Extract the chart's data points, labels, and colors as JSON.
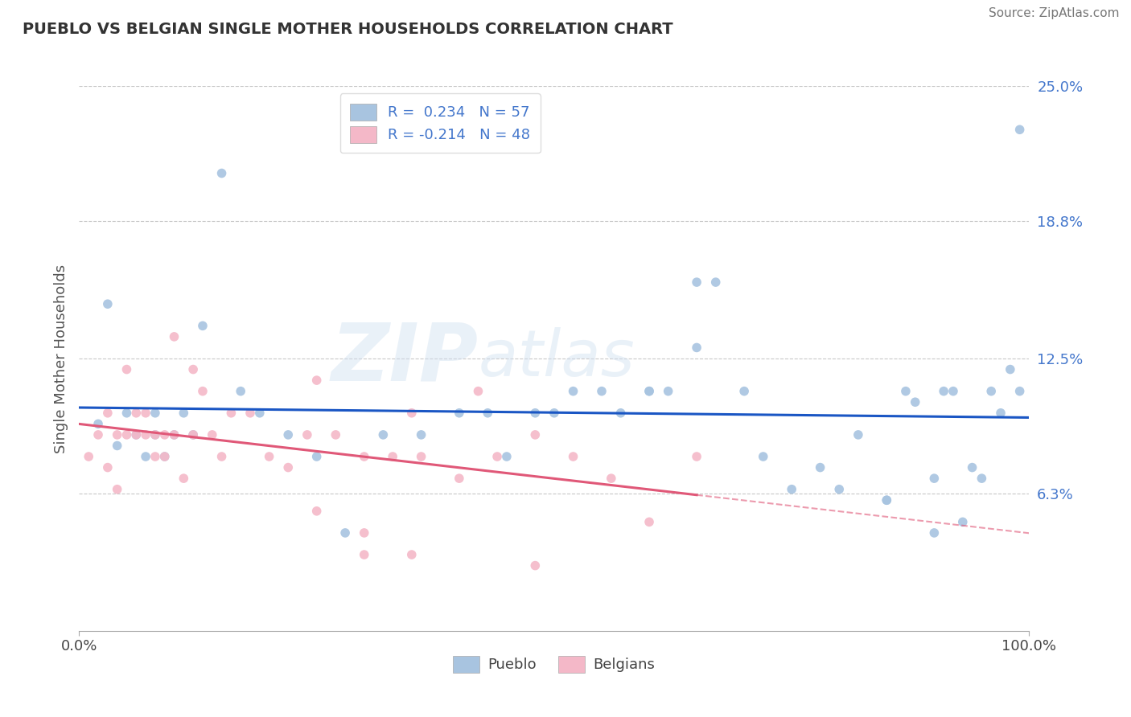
{
  "title": "PUEBLO VS BELGIAN SINGLE MOTHER HOUSEHOLDS CORRELATION CHART",
  "source": "Source: ZipAtlas.com",
  "ylabel": "Single Mother Households",
  "xlim": [
    0,
    100
  ],
  "ylim": [
    0,
    25
  ],
  "ytick_vals": [
    6.3,
    12.5,
    18.8,
    25.0
  ],
  "ytick_labels": [
    "6.3%",
    "12.5%",
    "18.8%",
    "25.0%"
  ],
  "xtick_vals": [
    0,
    100
  ],
  "xtick_labels": [
    "0.0%",
    "100.0%"
  ],
  "pueblo_color": "#a8c4e0",
  "belgian_color": "#f4b8c8",
  "pueblo_line_color": "#1a56c4",
  "belgian_line_color": "#e05878",
  "pueblo_R": 0.234,
  "pueblo_N": 57,
  "belgian_R": -0.214,
  "belgian_N": 48,
  "legend_label1": "Pueblo",
  "legend_label2": "Belgians",
  "watermark": "ZIPatlas",
  "background_color": "#ffffff",
  "grid_color": "#c8c8c8",
  "text_color": "#4477cc",
  "title_color": "#333333",
  "source_color": "#777777",
  "ylabel_color": "#555555",
  "pueblo_x": [
    2,
    4,
    5,
    6,
    7,
    8,
    8,
    9,
    10,
    11,
    12,
    13,
    15,
    17,
    19,
    22,
    25,
    28,
    32,
    36,
    40,
    43,
    45,
    48,
    50,
    52,
    55,
    57,
    60,
    62,
    65,
    67,
    70,
    72,
    75,
    78,
    80,
    82,
    85,
    87,
    88,
    90,
    91,
    92,
    93,
    94,
    95,
    96,
    97,
    98,
    99,
    99,
    3,
    60,
    65,
    85,
    90
  ],
  "pueblo_y": [
    9.5,
    8.5,
    10,
    9,
    8,
    9,
    10,
    8,
    9,
    10,
    9,
    14,
    21,
    11,
    10,
    9,
    8,
    4.5,
    9,
    9,
    10,
    10,
    8,
    10,
    10,
    11,
    11,
    10,
    11,
    11,
    13,
    16,
    11,
    8,
    6.5,
    7.5,
    6.5,
    9,
    6,
    11,
    10.5,
    4.5,
    11,
    11,
    5,
    7.5,
    7,
    11,
    10,
    12,
    11,
    23,
    15,
    11,
    16,
    6,
    7
  ],
  "belgian_x": [
    1,
    2,
    3,
    3,
    4,
    4,
    5,
    5,
    6,
    6,
    7,
    7,
    8,
    8,
    9,
    9,
    10,
    11,
    12,
    13,
    14,
    15,
    16,
    18,
    20,
    22,
    24,
    27,
    30,
    33,
    36,
    40,
    44,
    48,
    52,
    56,
    60,
    65,
    42,
    10,
    12,
    25,
    35,
    30,
    25,
    30,
    35,
    48
  ],
  "belgian_y": [
    8,
    9,
    10,
    7.5,
    9,
    6.5,
    9,
    12,
    9,
    10,
    10,
    9,
    8,
    9,
    8,
    9,
    9,
    7,
    9,
    11,
    9,
    8,
    10,
    10,
    8,
    7.5,
    9,
    9,
    8,
    8,
    8,
    7,
    8,
    9,
    8,
    7,
    5,
    8,
    11,
    13.5,
    12,
    11.5,
    10,
    4.5,
    5.5,
    3.5,
    3.5,
    3
  ]
}
